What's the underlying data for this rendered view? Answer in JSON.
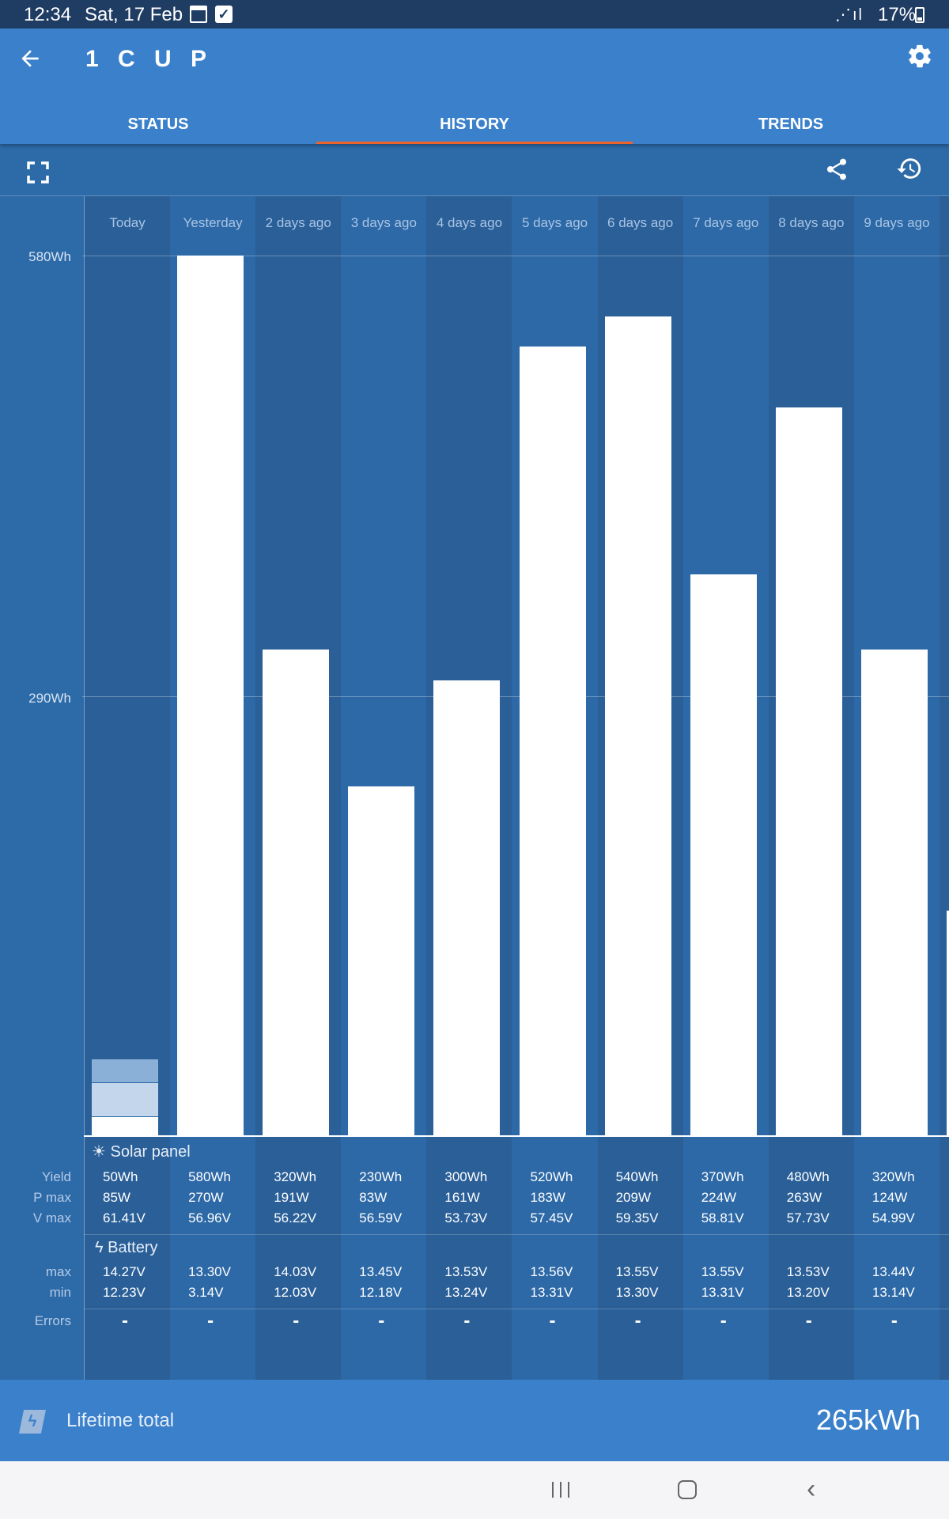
{
  "status_bar": {
    "time": "12:34",
    "date": "Sat, 17 Feb",
    "battery": "17%"
  },
  "app_bar": {
    "back_icon": "arrow-back-icon",
    "title": "1 C U P",
    "settings_icon": "gear-icon"
  },
  "tabs": [
    {
      "label": "STATUS",
      "active": false
    },
    {
      "label": "HISTORY",
      "active": true
    },
    {
      "label": "TRENDS",
      "active": false
    }
  ],
  "toolbar": {
    "fullscreen_icon": "fullscreen-icon",
    "share_icon": "share-icon",
    "history_icon": "restore-history-icon"
  },
  "chart_data": {
    "type": "bar",
    "ylabel_ticks": [
      "580Wh",
      "290Wh"
    ],
    "ylim": [
      0,
      580
    ],
    "unit": "Wh",
    "categories": [
      "Today",
      "Yesterday",
      "2 days ago",
      "3 days ago",
      "4 days ago",
      "5 days ago",
      "6 days ago",
      "7 days ago",
      "8 days ago",
      "9 days ago"
    ],
    "values": [
      50,
      580,
      320,
      230,
      300,
      520,
      540,
      370,
      480,
      320
    ]
  },
  "table": {
    "solar_title": "Solar panel",
    "battery_title": "Battery",
    "row_labels": {
      "yield": "Yield",
      "pmax": "P max",
      "vmax": "V max",
      "bmax": "max",
      "bmin": "min",
      "errors": "Errors"
    },
    "columns": [
      {
        "yield": "50Wh",
        "pmax": "85W",
        "vmax": "61.41V",
        "bmax": "14.27V",
        "bmin": "12.23V",
        "errors": "-"
      },
      {
        "yield": "580Wh",
        "pmax": "270W",
        "vmax": "56.96V",
        "bmax": "13.30V",
        "bmin": "3.14V",
        "errors": "-"
      },
      {
        "yield": "320Wh",
        "pmax": "191W",
        "vmax": "56.22V",
        "bmax": "14.03V",
        "bmin": "12.03V",
        "errors": "-"
      },
      {
        "yield": "230Wh",
        "pmax": "83W",
        "vmax": "56.59V",
        "bmax": "13.45V",
        "bmin": "12.18V",
        "errors": "-"
      },
      {
        "yield": "300Wh",
        "pmax": "161W",
        "vmax": "53.73V",
        "bmax": "13.53V",
        "bmin": "13.24V",
        "errors": "-"
      },
      {
        "yield": "520Wh",
        "pmax": "183W",
        "vmax": "57.45V",
        "bmax": "13.56V",
        "bmin": "13.31V",
        "errors": "-"
      },
      {
        "yield": "540Wh",
        "pmax": "209W",
        "vmax": "59.35V",
        "bmax": "13.55V",
        "bmin": "13.30V",
        "errors": "-"
      },
      {
        "yield": "370Wh",
        "pmax": "224W",
        "vmax": "58.81V",
        "bmax": "13.55V",
        "bmin": "13.31V",
        "errors": "-"
      },
      {
        "yield": "480Wh",
        "pmax": "263W",
        "vmax": "57.73V",
        "bmax": "13.53V",
        "bmin": "13.20V",
        "errors": "-"
      },
      {
        "yield": "320Wh",
        "pmax": "124W",
        "vmax": "54.99V",
        "bmax": "13.44V",
        "bmin": "13.14V",
        "errors": "-"
      }
    ]
  },
  "lifetime": {
    "label": "Lifetime total",
    "value": "265kWh"
  },
  "colors": {
    "header": "#3a80cb",
    "background": "#2d6aa8",
    "status_bar": "#1f3c63",
    "tab_indicator": "#f0622b"
  }
}
